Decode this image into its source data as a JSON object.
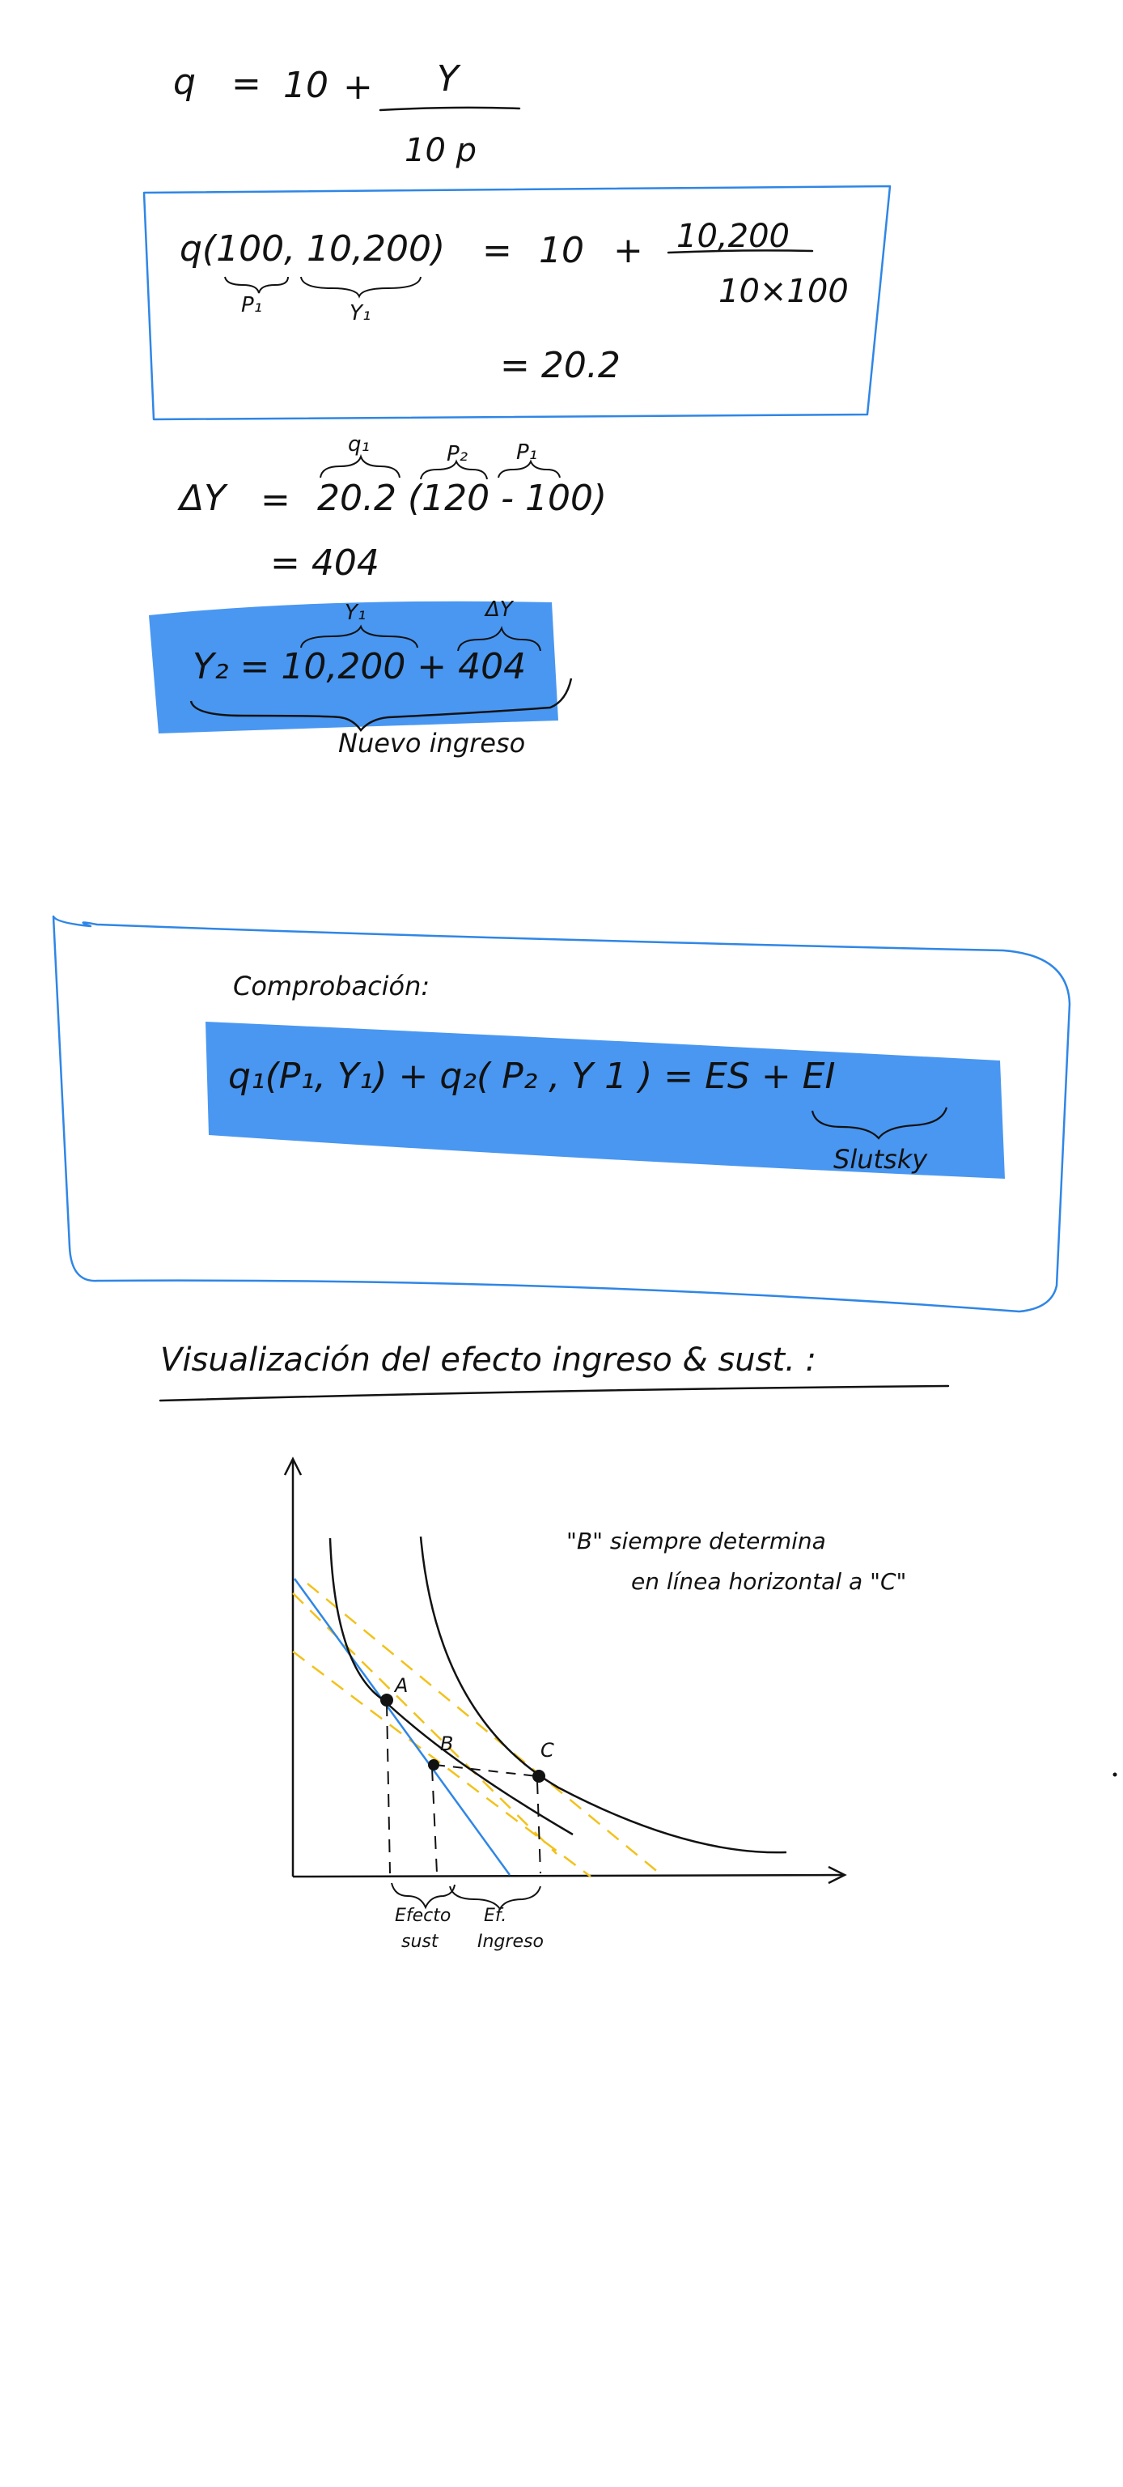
{
  "page": {
    "background": "#ffffff",
    "ink_color": "#121212",
    "accent_blue": "#2f86e6",
    "highlight_blue": "#3a8ef0",
    "dashed_yellow": "#f2c21b"
  },
  "eq1": {
    "lhs": "q",
    "eq": "=",
    "const": "10",
    "plus": "+",
    "num": "Y",
    "den": "10 p"
  },
  "box1": {
    "lhs": "q(100, 10,200)",
    "p1_label": "P₁",
    "y1_label": "Y₁",
    "eq": "=",
    "const": "10",
    "plus": "+",
    "num": "10,200",
    "den": "10×100",
    "result": "= 20.2"
  },
  "delta": {
    "lhs": "ΔY",
    "eq": "=",
    "q1_label": "q₁",
    "p2_label": "P₂",
    "p1_label": "P₁",
    "expr": "20.2 (120 - 100)",
    "result": "= 404"
  },
  "y2": {
    "expr": "Y₂ = 10,200 + 404",
    "y1_label": "Y₁",
    "dy_label": "ΔY",
    "caption": "Nuevo ingreso"
  },
  "check": {
    "title": "Comprobación:",
    "expr": "q₁(P₁, Y₁) + q₂( P₂ , Y 1 ) = ES + EI",
    "caption": "Slutsky"
  },
  "section": {
    "title": "Visualización del efecto ingreso & sust. :"
  },
  "graph": {
    "note_line1": "\"B\" siempre determina",
    "note_line2": "en línea horizontal a \"C\"",
    "point_a": "A",
    "point_b": "B",
    "point_c": "C",
    "label_sust_1": "Efecto",
    "label_sust_2": "sust",
    "label_ing_1": "Ef.",
    "label_ing_2": "Ingreso"
  }
}
